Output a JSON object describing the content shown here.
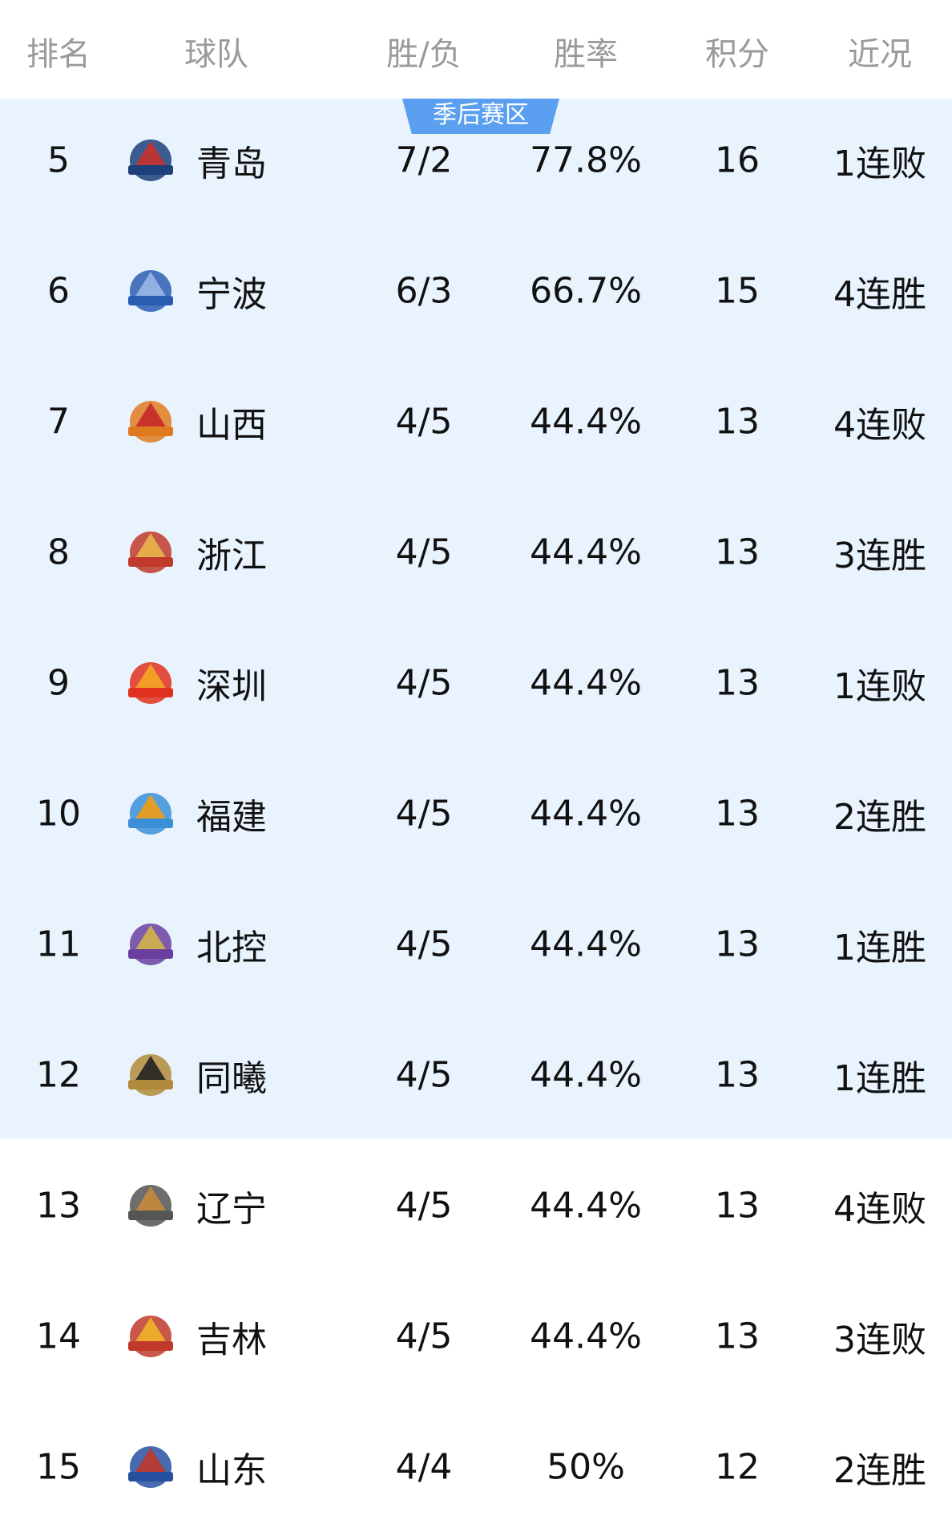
{
  "header": {
    "rank": "排名",
    "team": "球队",
    "wl": "胜/负",
    "pct": "胜率",
    "points": "积分",
    "streak": "近况"
  },
  "zone_badge": "季后赛区",
  "colors": {
    "playoff_band": "#e9f3fd",
    "badge": "#5b9ff0",
    "header_text": "#9a9a9a"
  },
  "rows": [
    {
      "rank": "5",
      "team": "青岛",
      "wl": "7/2",
      "pct": "77.8%",
      "points": "16",
      "streak": "1连败",
      "logo": "qingdao-eagle-logo",
      "color": "#1d3f7a",
      "accent": "#c8312b",
      "playoff": true
    },
    {
      "rank": "6",
      "team": "宁波",
      "wl": "6/3",
      "pct": "66.7%",
      "points": "15",
      "streak": "4连胜",
      "logo": "ningbo-rockets-logo",
      "color": "#2a5db0",
      "accent": "#9ab8e6",
      "playoff": true
    },
    {
      "rank": "7",
      "team": "山西",
      "wl": "4/5",
      "pct": "44.4%",
      "points": "13",
      "streak": "4连败",
      "logo": "shanxi-logo",
      "color": "#e07a1f",
      "accent": "#c62828",
      "playoff": true
    },
    {
      "rank": "8",
      "team": "浙江",
      "wl": "4/5",
      "pct": "44.4%",
      "points": "13",
      "streak": "3连胜",
      "logo": "zhejiang-golden-bulls-logo",
      "color": "#c0392b",
      "accent": "#e8b64a",
      "playoff": true
    },
    {
      "rank": "9",
      "team": "深圳",
      "wl": "4/5",
      "pct": "44.4%",
      "points": "13",
      "streak": "1连败",
      "logo": "shenzhen-leopards-logo",
      "color": "#e0301e",
      "accent": "#f5a623",
      "playoff": true
    },
    {
      "rank": "10",
      "team": "福建",
      "wl": "4/5",
      "pct": "44.4%",
      "points": "13",
      "streak": "2连胜",
      "logo": "fujian-sturgeons-logo",
      "color": "#3a8fd8",
      "accent": "#f39c12",
      "playoff": true
    },
    {
      "rank": "11",
      "team": "北控",
      "wl": "4/5",
      "pct": "44.4%",
      "points": "13",
      "streak": "1连胜",
      "logo": "beikong-royal-fighters-logo",
      "color": "#6a3fa0",
      "accent": "#d4b24a",
      "playoff": true
    },
    {
      "rank": "12",
      "team": "同曦",
      "wl": "4/5",
      "pct": "44.4%",
      "points": "13",
      "streak": "1连胜",
      "logo": "nanjing-monkey-kings-logo",
      "color": "#b08a3a",
      "accent": "#222222",
      "playoff": true
    },
    {
      "rank": "13",
      "team": "辽宁",
      "wl": "4/5",
      "pct": "44.4%",
      "points": "13",
      "streak": "4连败",
      "logo": "liaoning-leopards-logo",
      "color": "#555555",
      "accent": "#c58a3c",
      "playoff": false
    },
    {
      "rank": "14",
      "team": "吉林",
      "wl": "4/5",
      "pct": "44.4%",
      "points": "13",
      "streak": "3连败",
      "logo": "jilin-tigers-logo",
      "color": "#c0392b",
      "accent": "#f0b429",
      "playoff": false
    },
    {
      "rank": "15",
      "team": "山东",
      "wl": "4/4",
      "pct": "50%",
      "points": "12",
      "streak": "2连胜",
      "logo": "shandong-logo",
      "color": "#2850a0",
      "accent": "#c0392b",
      "playoff": false
    }
  ]
}
